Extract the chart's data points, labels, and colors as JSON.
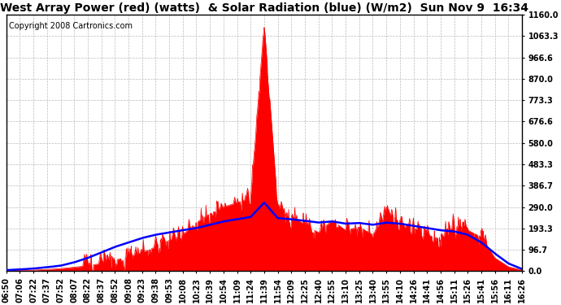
{
  "title": "West Array Power (red) (watts)  & Solar Radiation (blue) (W/m2)  Sun Nov 9  16:34",
  "copyright": "Copyright 2008 Cartronics.com",
  "background_color": "#ffffff",
  "plot_bg_color": "#ffffff",
  "grid_color": "#aaaaaa",
  "right_yticks": [
    0.0,
    96.7,
    193.3,
    290.0,
    386.7,
    483.3,
    580.0,
    676.6,
    773.3,
    870.0,
    966.6,
    1063.3,
    1160.0
  ],
  "ytick_labels": [
    "0.0",
    "96.7",
    "193.3",
    "290.0",
    "386.7",
    "483.3",
    "580.0",
    "676.6",
    "773.3",
    "870.0",
    "966.6",
    "1063.3",
    "1160.0"
  ],
  "x_labels": [
    "06:50",
    "07:06",
    "07:22",
    "07:37",
    "07:52",
    "08:07",
    "08:22",
    "08:37",
    "08:52",
    "09:08",
    "09:23",
    "09:38",
    "09:53",
    "10:08",
    "10:23",
    "10:39",
    "10:54",
    "11:09",
    "11:24",
    "11:39",
    "11:54",
    "12:09",
    "12:25",
    "12:40",
    "12:55",
    "13:10",
    "13:25",
    "13:40",
    "13:55",
    "14:10",
    "14:26",
    "14:41",
    "14:56",
    "15:11",
    "15:26",
    "15:41",
    "15:56",
    "16:11",
    "16:26"
  ],
  "red_line_color": "#ff0000",
  "blue_line_color": "#0000ff",
  "red_fill_color": "#ff0000",
  "title_fontsize": 10,
  "tick_fontsize": 7,
  "copyright_fontsize": 7,
  "red_data": [
    2,
    3,
    5,
    8,
    10,
    15,
    20,
    30,
    40,
    55,
    70,
    90,
    110,
    130,
    180,
    220,
    260,
    290,
    310,
    1120,
    280,
    240,
    200,
    170,
    220,
    180,
    190,
    160,
    250,
    220,
    190,
    160,
    140,
    200,
    180,
    150,
    60,
    20,
    5
  ],
  "blue_data": [
    5,
    8,
    12,
    18,
    25,
    40,
    60,
    85,
    110,
    130,
    150,
    165,
    175,
    185,
    195,
    210,
    225,
    235,
    245,
    310,
    240,
    235,
    228,
    220,
    225,
    215,
    218,
    210,
    220,
    215,
    205,
    195,
    185,
    180,
    165,
    130,
    80,
    35,
    10
  ]
}
